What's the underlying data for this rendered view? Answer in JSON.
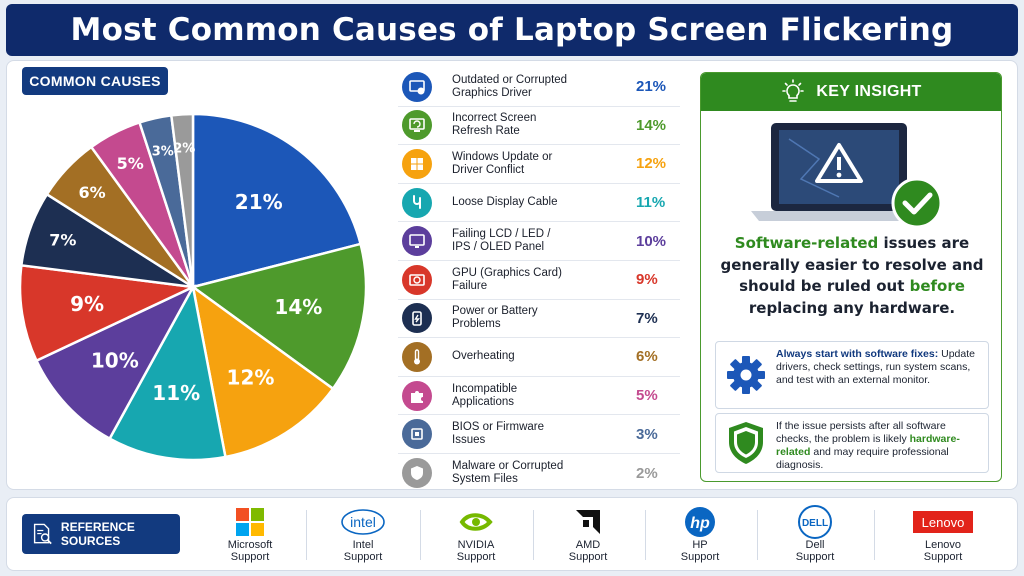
{
  "title": "Most Common Causes of Laptop Screen Flickering",
  "causes_label": "COMMON CAUSES",
  "chart_data": {
    "type": "pie",
    "categories": [
      "Outdated or Corrupted Graphics Driver",
      "Incorrect Screen Refresh Rate",
      "Windows Update or Driver Conflict",
      "Loose Display Cable",
      "Failing LCD / LED / IPS / OLED Panel",
      "GPU (Graphics Card) Failure",
      "Power or Battery Problems",
      "Overheating",
      "Incompatible Applications",
      "BIOS or Firmware Issues",
      "Malware or Corrupted System Files"
    ],
    "values": [
      21,
      14,
      12,
      11,
      10,
      9,
      7,
      6,
      5,
      3,
      2
    ],
    "labels": [
      "21%",
      "14%",
      "12%",
      "11%",
      "10%",
      "9%",
      "7%",
      "6%",
      "5%",
      "3%",
      "2%"
    ],
    "colors": [
      "#1c57b8",
      "#4e9a2c",
      "#f6a20f",
      "#17a7b0",
      "#5c3e9c",
      "#d8372a",
      "#1d2f52",
      "#a36f24",
      "#c44a8f",
      "#4a6a99",
      "#9a9a9a"
    ]
  },
  "legend": [
    {
      "name": "Outdated or Corrupted\nGraphics Driver",
      "pct": "21%",
      "color": "#1c57b8",
      "icon": "driver-icon"
    },
    {
      "name": "Incorrect Screen\nRefresh Rate",
      "pct": "14%",
      "color": "#4e9a2c",
      "icon": "refresh-icon"
    },
    {
      "name": "Windows Update or\nDriver Conflict",
      "pct": "12%",
      "color": "#f6a20f",
      "icon": "windows-icon"
    },
    {
      "name": "Loose Display Cable",
      "pct": "11%",
      "color": "#17a7b0",
      "icon": "cable-icon"
    },
    {
      "name": "Failing LCD / LED /\nIPS / OLED Panel",
      "pct": "10%",
      "color": "#5c3e9c",
      "icon": "monitor-icon"
    },
    {
      "name": "GPU (Graphics Card)\nFailure",
      "pct": "9%",
      "color": "#d8372a",
      "icon": "gpu-icon"
    },
    {
      "name": "Power or Battery\nProblems",
      "pct": "7%",
      "color": "#1d2f52",
      "icon": "battery-icon"
    },
    {
      "name": "Overheating",
      "pct": "6%",
      "color": "#a36f24",
      "icon": "thermometer-icon"
    },
    {
      "name": "Incompatible\nApplications",
      "pct": "5%",
      "color": "#c44a8f",
      "icon": "puzzle-icon"
    },
    {
      "name": "BIOS or Firmware\nIssues",
      "pct": "3%",
      "color": "#4a6a99",
      "icon": "chip-icon"
    },
    {
      "name": "Malware or Corrupted\nSystem Files",
      "pct": "2%",
      "color": "#9a9a9a",
      "icon": "shield-icon"
    }
  ],
  "insight": {
    "header": "KEY INSIGHT",
    "s1": "Software-related",
    "s2": " issues are generally easier to resolve and should be ruled out ",
    "s3": "before",
    "s4": " replacing any hardware.",
    "card1_bold": "Always start with software fixes:",
    "card1_text": " Update drivers, check settings, run system scans, and test with an external monitor.",
    "card2_a": "If the issue persists after all software checks, the problem is likely ",
    "card2_b": "hardware-related",
    "card2_c": " and may require professional diagnosis."
  },
  "sources_label": "REFERENCE SOURCES",
  "sources": [
    {
      "label": "Microsoft\nSupport",
      "logo": "microsoft-logo"
    },
    {
      "label": "Intel\nSupport",
      "logo": "intel-logo",
      "logo_text": "intel"
    },
    {
      "label": "NVIDIA\nSupport",
      "logo": "nvidia-logo"
    },
    {
      "label": "AMD\nSupport",
      "logo": "amd-logo"
    },
    {
      "label": "HP\nSupport",
      "logo": "hp-logo",
      "logo_text": "hp"
    },
    {
      "label": "Dell\nSupport",
      "logo": "dell-logo",
      "logo_text": "DELL"
    },
    {
      "label": "Lenovo\nSupport",
      "logo": "lenovo-logo",
      "logo_text": "Lenovo"
    }
  ]
}
